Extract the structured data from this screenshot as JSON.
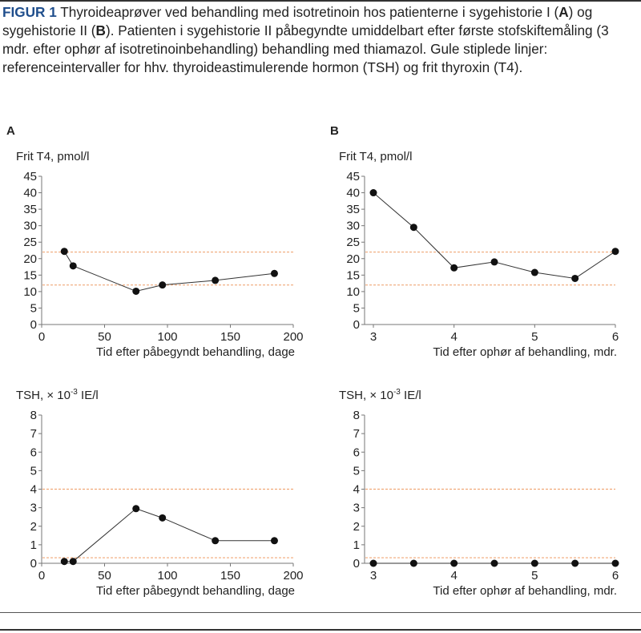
{
  "caption": {
    "figure_label": "FIGUR 1",
    "part1": " Thyroideaprøver ved behandling med isotretinoin hos patienterne i sygehistorie I (",
    "bold_a": "A",
    "part2": ") og sygehistorie II (",
    "bold_b": "B",
    "part3": "). Patienten i sygehistorie II påbegyndte umiddelbart efter første stofskiftemåling (3 mdr. efter ophør af isotretinoinbehandling) behandling med thiamazol. Gule stiplede linjer: referenceintervaller for hhv. thyroideastimulerende hormon (TSH) og frit thyroxin (T4)."
  },
  "colors": {
    "figure_label": "#1f4e8c",
    "reference_line": "#f0a878",
    "marker": "#111111"
  },
  "chart_data": [
    {
      "panel": "A",
      "type": "line",
      "ylabel": "Frit T4, pmol/l",
      "xlabel": "Tid efter påbegyndt behandling, dage",
      "xlim": [
        0,
        200
      ],
      "ylim": [
        0,
        45
      ],
      "xticks": [
        0,
        50,
        100,
        150,
        200
      ],
      "yticks": [
        0,
        5,
        10,
        15,
        20,
        25,
        30,
        35,
        40,
        45
      ],
      "reference_lines": [
        12,
        22
      ],
      "x": [
        18,
        25,
        75,
        96,
        138,
        185
      ],
      "y": [
        22.2,
        17.8,
        10.1,
        12.0,
        13.4,
        15.5
      ]
    },
    {
      "panel": "B",
      "type": "line",
      "ylabel": "Frit T4, pmol/l",
      "xlabel": "Tid efter ophør af behandling, mdr.",
      "xlim": [
        3,
        6
      ],
      "ylim": [
        0,
        45
      ],
      "xticks": [
        3,
        4,
        5,
        6
      ],
      "yticks": [
        0,
        5,
        10,
        15,
        20,
        25,
        30,
        35,
        40,
        45
      ],
      "reference_lines": [
        12,
        22
      ],
      "x": [
        3,
        3.5,
        4,
        4.5,
        5,
        5.5,
        6
      ],
      "y": [
        40,
        29.5,
        17.2,
        19,
        15.8,
        14,
        22.2
      ]
    },
    {
      "panel": "A",
      "type": "line",
      "ylabel": "TSH, × 10",
      "ylabel_sup": "-3",
      "ylabel_suffix": " IE/l",
      "xlabel": "Tid efter påbegyndt behandling, dage",
      "xlim": [
        0,
        200
      ],
      "ylim": [
        0,
        8
      ],
      "xticks": [
        0,
        50,
        100,
        150,
        200
      ],
      "yticks": [
        0,
        1,
        2,
        3,
        4,
        5,
        6,
        7,
        8
      ],
      "reference_lines": [
        0.3,
        4
      ],
      "x": [
        18,
        25,
        75,
        96,
        138,
        185
      ],
      "y": [
        0.1,
        0.1,
        2.95,
        2.45,
        1.22,
        1.22
      ]
    },
    {
      "panel": "B",
      "type": "line",
      "ylabel": "TSH, × 10",
      "ylabel_sup": "-3",
      "ylabel_suffix": " IE/l",
      "xlabel": "Tid efter ophør af behandling, mdr.",
      "xlim": [
        3,
        6
      ],
      "ylim": [
        0,
        8
      ],
      "xticks": [
        3,
        4,
        5,
        6
      ],
      "yticks": [
        0,
        1,
        2,
        3,
        4,
        5,
        6,
        7,
        8
      ],
      "reference_lines": [
        0.3,
        4
      ],
      "x": [
        3,
        3.5,
        4,
        4.5,
        5,
        5.5,
        6
      ],
      "y": [
        0,
        0,
        0,
        0,
        0,
        0,
        0
      ]
    }
  ]
}
